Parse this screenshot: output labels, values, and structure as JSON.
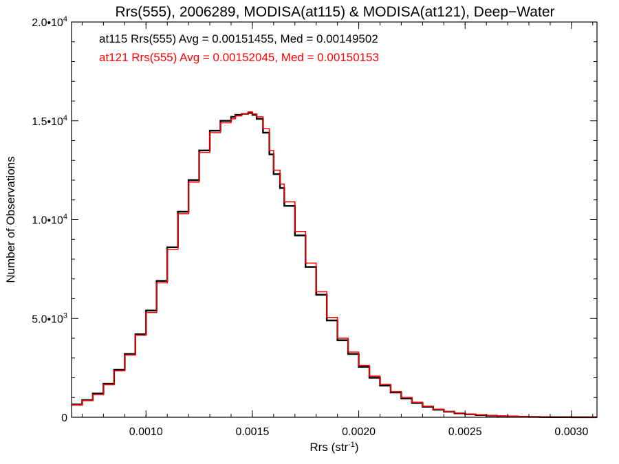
{
  "chart_data": {
    "type": "line",
    "step": true,
    "title": "Rrs(555), 2006289, MODISA(at115) & MODISA(at121), Deep−Water",
    "xlabel": {
      "text": "Rrs (str",
      "sup": "-1",
      "suffix": ")"
    },
    "ylabel": "Number of Observations",
    "xlim": [
      0.00065,
      0.00312
    ],
    "ylim": [
      0,
      20000
    ],
    "grid": false,
    "x_ticks": [
      {
        "value": 0.001,
        "label": "0.0010"
      },
      {
        "value": 0.0015,
        "label": "0.0015"
      },
      {
        "value": 0.002,
        "label": "0.0020"
      },
      {
        "value": 0.0025,
        "label": "0.0025"
      },
      {
        "value": 0.003,
        "label": "0.0030"
      }
    ],
    "y_ticks": [
      {
        "value": 0,
        "label": "0",
        "sup": ""
      },
      {
        "value": 5000,
        "label": "5.0•10",
        "sup": "3"
      },
      {
        "value": 10000,
        "label": "1.0•10",
        "sup": "4"
      },
      {
        "value": 15000,
        "label": "1.5•10",
        "sup": "4"
      },
      {
        "value": 20000,
        "label": "2.0•10",
        "sup": "4"
      }
    ],
    "annotations": [
      {
        "text": "at115 Rrs(555) Avg = 0.00151455, Med = 0.00149502",
        "color": "#000000"
      },
      {
        "text": "at121 Rrs(555) Avg = 0.00152045, Med = 0.00150153",
        "color": "#ff0000"
      }
    ],
    "series": [
      {
        "color": "#000000",
        "x": [
          0.00065,
          0.0007,
          0.00075,
          0.0008,
          0.00085,
          0.0009,
          0.00095,
          0.001,
          0.00105,
          0.0011,
          0.00115,
          0.0012,
          0.00125,
          0.0013,
          0.00135,
          0.0014,
          0.00142,
          0.00145,
          0.00148,
          0.0015,
          0.00152,
          0.00155,
          0.00158,
          0.0016,
          0.00163,
          0.00165,
          0.0017,
          0.00175,
          0.0018,
          0.00185,
          0.0019,
          0.00195,
          0.002,
          0.00205,
          0.0021,
          0.00215,
          0.0022,
          0.00225,
          0.0023,
          0.00235,
          0.0024,
          0.00245,
          0.0025,
          0.00255,
          0.0026,
          0.00265,
          0.0027,
          0.00275,
          0.0028,
          0.00285,
          0.0029,
          0.00295,
          0.003,
          0.00305,
          0.0031,
          0.00312
        ],
        "y": [
          650,
          870,
          1200,
          1700,
          2400,
          3200,
          4200,
          5400,
          6900,
          8600,
          10400,
          12000,
          13500,
          14500,
          15000,
          15200,
          15300,
          15350,
          15400,
          15300,
          15100,
          14400,
          13300,
          12300,
          11600,
          10700,
          9200,
          7600,
          6200,
          4900,
          3900,
          3200,
          2550,
          2000,
          1600,
          1250,
          950,
          720,
          530,
          380,
          280,
          200,
          150,
          110,
          80,
          55,
          40,
          28,
          18,
          12,
          8,
          5,
          3,
          2,
          1,
          1
        ]
      },
      {
        "color": "#ff0000",
        "x": [
          0.00065,
          0.0007,
          0.00075,
          0.0008,
          0.00085,
          0.0009,
          0.00095,
          0.001,
          0.00105,
          0.0011,
          0.00115,
          0.0012,
          0.00125,
          0.0013,
          0.00135,
          0.0014,
          0.00142,
          0.00145,
          0.00148,
          0.0015,
          0.00152,
          0.00155,
          0.00158,
          0.0016,
          0.00163,
          0.00165,
          0.0017,
          0.00175,
          0.0018,
          0.00185,
          0.0019,
          0.00195,
          0.002,
          0.00205,
          0.0021,
          0.00215,
          0.0022,
          0.00225,
          0.0023,
          0.00235,
          0.0024,
          0.00245,
          0.0025,
          0.00255,
          0.0026,
          0.00265,
          0.0027,
          0.00275,
          0.0028,
          0.00285,
          0.0029,
          0.00295,
          0.003,
          0.00305,
          0.0031,
          0.00312
        ],
        "y": [
          620,
          840,
          1150,
          1650,
          2350,
          3150,
          4150,
          5300,
          6800,
          8500,
          10300,
          11900,
          13400,
          14400,
          14900,
          15100,
          15250,
          15350,
          15450,
          15350,
          15200,
          14600,
          13500,
          12500,
          11800,
          10900,
          9400,
          7800,
          6350,
          5050,
          4000,
          3300,
          2620,
          2080,
          1660,
          1300,
          1000,
          760,
          560,
          405,
          300,
          215,
          160,
          120,
          88,
          60,
          44,
          31,
          20,
          14,
          9,
          6,
          4,
          2,
          1,
          1
        ]
      }
    ]
  }
}
